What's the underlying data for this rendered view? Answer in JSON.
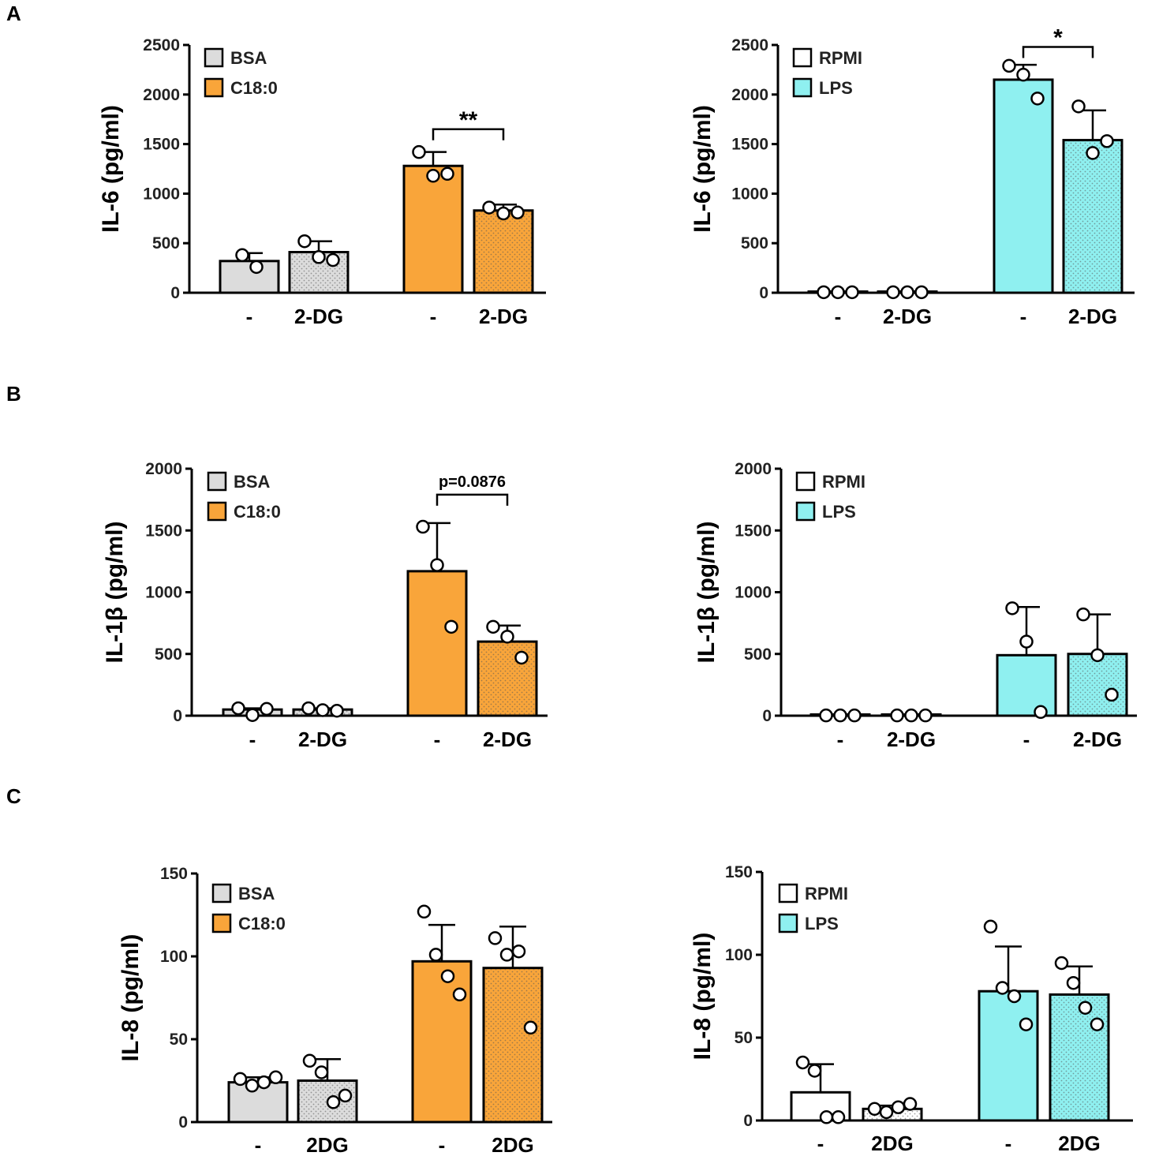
{
  "colors": {
    "bsa": "#dcdcdc",
    "c18": "#f9a53a",
    "rpmi": "#ffffff",
    "lps": "#8ff0f0",
    "ink": "#000000"
  },
  "panel_labels": [
    "A",
    "B",
    "C"
  ],
  "chart_data": [
    {
      "id": "A-left",
      "type": "bar",
      "ylabel": "IL-6 (pg/ml)",
      "ylim": [
        0,
        2500
      ],
      "yticks": [
        "0",
        "500",
        "1000",
        "1500",
        "2000",
        "2500"
      ],
      "categories": [
        "-",
        "2-DG",
        "-",
        "2-DG"
      ],
      "legend": [
        {
          "label": "BSA",
          "color": "#dcdcdc"
        },
        {
          "label": "C18:0",
          "color": "#f9a53a"
        }
      ],
      "bars": [
        {
          "value": 320,
          "sd": 80,
          "color": "#dcdcdc",
          "dotted": false,
          "points": [
            380,
            260
          ]
        },
        {
          "value": 410,
          "sd": 110,
          "color": "#dcdcdc",
          "dotted": true,
          "points": [
            520,
            360,
            330
          ]
        },
        {
          "value": 1280,
          "sd": 140,
          "color": "#f9a53a",
          "dotted": false,
          "points": [
            1420,
            1180,
            1200
          ]
        },
        {
          "value": 830,
          "sd": 60,
          "color": "#f9a53a",
          "dotted": true,
          "points": [
            860,
            800,
            810
          ]
        }
      ],
      "significance": {
        "label": "**",
        "from": 2,
        "to": 3,
        "y": 1650
      }
    },
    {
      "id": "A-right",
      "type": "bar",
      "ylabel": "IL-6 (pg/ml)",
      "ylim": [
        0,
        2500
      ],
      "yticks": [
        "0",
        "500",
        "1000",
        "1500",
        "2000",
        "2500"
      ],
      "categories": [
        "-",
        "2-DG",
        "-",
        "2-DG"
      ],
      "legend": [
        {
          "label": "RPMI",
          "color": "#ffffff"
        },
        {
          "label": "LPS",
          "color": "#8ff0f0"
        }
      ],
      "bars": [
        {
          "value": 5,
          "sd": 0,
          "color": "#ffffff",
          "dotted": false,
          "points": [
            5,
            5,
            5
          ]
        },
        {
          "value": 5,
          "sd": 0,
          "color": "#ffffff",
          "dotted": true,
          "points": [
            5,
            5,
            5
          ]
        },
        {
          "value": 2150,
          "sd": 150,
          "color": "#8ff0f0",
          "dotted": false,
          "points": [
            2290,
            2200,
            1960
          ]
        },
        {
          "value": 1540,
          "sd": 300,
          "color": "#8ff0f0",
          "dotted": true,
          "points": [
            1880,
            1410,
            1530
          ]
        }
      ],
      "significance": {
        "label": "*",
        "from": 2,
        "to": 3,
        "y": 2480
      }
    },
    {
      "id": "B-left",
      "type": "bar",
      "ylabel": "IL-1β (pg/ml)",
      "ylim": [
        0,
        2000
      ],
      "yticks": [
        "0",
        "500",
        "1000",
        "1500",
        "2000"
      ],
      "categories": [
        "-",
        "2-DG",
        "-",
        "2-DG"
      ],
      "legend": [
        {
          "label": "BSA",
          "color": "#dcdcdc"
        },
        {
          "label": "C18:0",
          "color": "#f9a53a"
        }
      ],
      "bars": [
        {
          "value": 50,
          "sd": 10,
          "color": "#dcdcdc",
          "dotted": false,
          "points": [
            60,
            5,
            55
          ]
        },
        {
          "value": 50,
          "sd": 10,
          "color": "#dcdcdc",
          "dotted": true,
          "points": [
            60,
            45,
            40
          ]
        },
        {
          "value": 1170,
          "sd": 390,
          "color": "#f9a53a",
          "dotted": false,
          "points": [
            1530,
            1220,
            720
          ]
        },
        {
          "value": 600,
          "sd": 130,
          "color": "#f9a53a",
          "dotted": true,
          "points": [
            720,
            640,
            470
          ]
        }
      ],
      "significance": {
        "label": "p=0.0876",
        "from": 2,
        "to": 3,
        "y": 1790
      }
    },
    {
      "id": "B-right",
      "type": "bar",
      "ylabel": "IL-1β (pg/ml)",
      "ylim": [
        0,
        2000
      ],
      "yticks": [
        "0",
        "500",
        "1000",
        "1500",
        "2000"
      ],
      "categories": [
        "-",
        "2-DG",
        "-",
        "2-DG"
      ],
      "legend": [
        {
          "label": "RPMI",
          "color": "#ffffff"
        },
        {
          "label": "LPS",
          "color": "#8ff0f0"
        }
      ],
      "bars": [
        {
          "value": 2,
          "sd": 0,
          "color": "#ffffff",
          "dotted": false,
          "points": [
            2,
            2,
            2
          ]
        },
        {
          "value": 2,
          "sd": 0,
          "color": "#ffffff",
          "dotted": true,
          "points": [
            2,
            2,
            2
          ]
        },
        {
          "value": 490,
          "sd": 390,
          "color": "#8ff0f0",
          "dotted": false,
          "points": [
            870,
            600,
            30
          ]
        },
        {
          "value": 500,
          "sd": 320,
          "color": "#8ff0f0",
          "dotted": true,
          "points": [
            820,
            490,
            170
          ]
        }
      ],
      "significance": null
    },
    {
      "id": "C-left",
      "type": "bar",
      "ylabel": "IL-8 (pg/ml)",
      "ylim": [
        0,
        150
      ],
      "yticks": [
        "0",
        "50",
        "100",
        "150"
      ],
      "categories": [
        "-",
        "2DG",
        "-",
        "2DG"
      ],
      "legend": [
        {
          "label": "BSA",
          "color": "#dcdcdc"
        },
        {
          "label": "C18:0",
          "color": "#f9a53a"
        }
      ],
      "bars": [
        {
          "value": 24,
          "sd": 3,
          "color": "#dcdcdc",
          "dotted": false,
          "points": [
            26,
            22,
            24,
            27
          ]
        },
        {
          "value": 25,
          "sd": 13,
          "color": "#dcdcdc",
          "dotted": true,
          "points": [
            37,
            30,
            12,
            16
          ]
        },
        {
          "value": 97,
          "sd": 22,
          "color": "#f9a53a",
          "dotted": false,
          "points": [
            127,
            101,
            88,
            77
          ]
        },
        {
          "value": 93,
          "sd": 25,
          "color": "#f9a53a",
          "dotted": true,
          "points": [
            111,
            101,
            103,
            57
          ]
        }
      ],
      "significance": null
    },
    {
      "id": "C-right",
      "type": "bar",
      "ylabel": "IL-8 (pg/ml)",
      "ylim": [
        0,
        150
      ],
      "yticks": [
        "0",
        "50",
        "100",
        "150"
      ],
      "categories": [
        "-",
        "2DG",
        "-",
        "2DG"
      ],
      "legend": [
        {
          "label": "RPMI",
          "color": "#ffffff"
        },
        {
          "label": "LPS",
          "color": "#8ff0f0"
        }
      ],
      "bars": [
        {
          "value": 17,
          "sd": 17,
          "color": "#ffffff",
          "dotted": false,
          "points": [
            35,
            30,
            2,
            2
          ]
        },
        {
          "value": 7,
          "sd": 2,
          "color": "#ffffff",
          "dotted": true,
          "points": [
            7,
            5,
            8,
            10
          ]
        },
        {
          "value": 78,
          "sd": 27,
          "color": "#8ff0f0",
          "dotted": false,
          "points": [
            117,
            80,
            75,
            58
          ]
        },
        {
          "value": 76,
          "sd": 17,
          "color": "#8ff0f0",
          "dotted": true,
          "points": [
            95,
            83,
            68,
            58
          ]
        }
      ],
      "significance": null
    }
  ]
}
